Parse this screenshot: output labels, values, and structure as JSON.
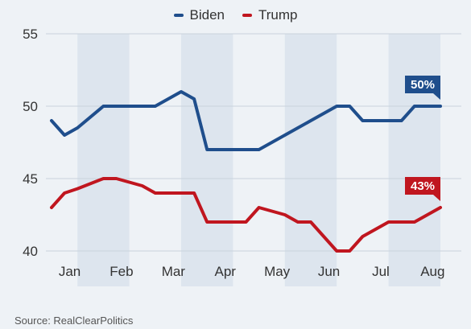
{
  "legend": {
    "biden": "Biden",
    "trump": "Trump"
  },
  "source": "Source: RealClearPolitics",
  "colors": {
    "biden": "#1f4e8c",
    "trump": "#c0161f",
    "band": "#dde5ee",
    "grid": "#c9d2dc"
  },
  "chart_data": {
    "type": "line",
    "title": "",
    "xlabel": "",
    "ylabel": "",
    "ylim": [
      40,
      55
    ],
    "yticks": [
      40,
      45,
      50,
      55
    ],
    "months": [
      "Jan",
      "Feb",
      "Mar",
      "Apr",
      "May",
      "Jun",
      "Jul",
      "Aug"
    ],
    "grid": true,
    "legend_position": "top-center",
    "series": [
      {
        "name": "Biden",
        "x": [
          0,
          0.25,
          0.5,
          1.0,
          1.5,
          1.75,
          2.0,
          2.5,
          2.75,
          3.0,
          3.5,
          3.75,
          4.0,
          4.5,
          4.75,
          5.0,
          5.5,
          5.75,
          6.0,
          6.5,
          6.75,
          7.0,
          7.5
        ],
        "values": [
          49,
          48,
          48.5,
          50,
          50,
          50,
          50,
          51,
          50.5,
          47,
          47,
          47,
          47,
          48,
          48.5,
          49,
          50,
          50,
          49,
          49,
          49,
          50,
          50
        ],
        "end_label": "50%"
      },
      {
        "name": "Trump",
        "x": [
          0,
          0.25,
          0.5,
          1.0,
          1.25,
          1.75,
          2.0,
          2.5,
          2.75,
          3.0,
          3.5,
          3.75,
          4.0,
          4.5,
          4.75,
          5.0,
          5.5,
          5.75,
          6.0,
          6.5,
          6.75,
          7.0,
          7.5
        ],
        "values": [
          43,
          44,
          44.3,
          45,
          45,
          44.5,
          44,
          44,
          44,
          42,
          42,
          42,
          43,
          42.5,
          42,
          42,
          40,
          40,
          41,
          42,
          42,
          42,
          43
        ],
        "end_label": "43%"
      }
    ]
  }
}
